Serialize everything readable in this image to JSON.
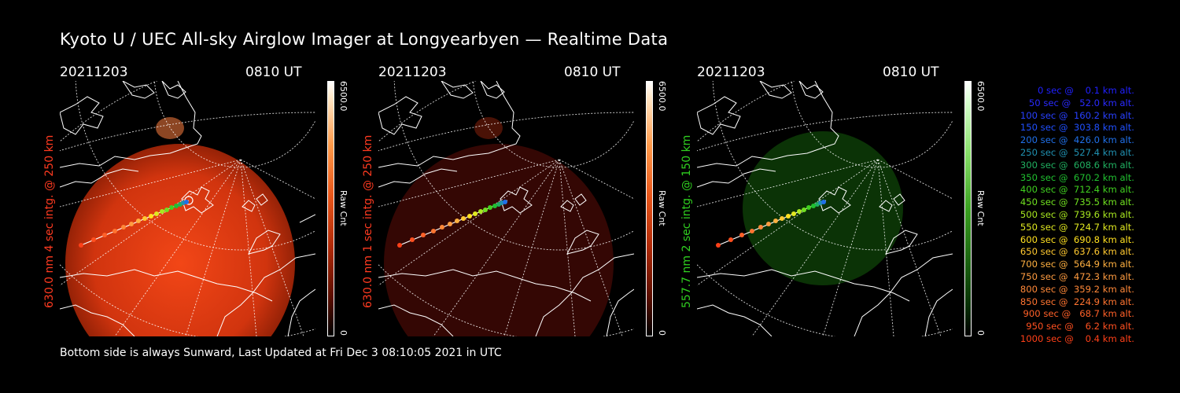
{
  "title": "Kyoto U / UEC All-sky Airglow Imager at Longyearbyen — Realtime Data",
  "footer": "Bottom side is always Sunward, Last Updated at Fri Dec  3 08:10:05 2021 in UTC",
  "panels": [
    {
      "date": "20211203",
      "time": "0810 UT",
      "side_label": "630.0 nm 4 sec intg. @ 250 km",
      "side_color": "#ff3a20",
      "cbar_top": "6500.0",
      "cbar_unit": "Raw Cnt",
      "cbar_bottom": "0",
      "glow": "#ff3c10",
      "glow_opacity": 0.78
    },
    {
      "date": "20211203",
      "time": "0810 UT",
      "side_label": "630.0 nm 1 sec intg. @ 250 km",
      "side_color": "#ff3a20",
      "cbar_top": "6500.0",
      "cbar_unit": "Raw Cnt",
      "cbar_bottom": "0",
      "glow": "#5a0c04",
      "glow_opacity": 0.55
    },
    {
      "date": "20211203",
      "time": "0810 UT",
      "side_label": "557.7 nm 2 sec intg. @ 150 km",
      "side_color": "#30d020",
      "cbar_top": "6500.0",
      "cbar_unit": "Raw Cnt",
      "cbar_bottom": "0",
      "glow": "#0f4a08",
      "glow_opacity": 0.6
    }
  ],
  "legend": [
    {
      "text": "0 sec @    0.1 km alt.",
      "color": "#2020ff"
    },
    {
      "text": "50 sec @   52.0 km alt.",
      "color": "#2a2aff"
    },
    {
      "text": "100 sec @  160.2 km alt.",
      "color": "#2840ff"
    },
    {
      "text": "150 sec @  303.8 km alt.",
      "color": "#2050ff"
    },
    {
      "text": "200 sec @  426.0 km alt.",
      "color": "#2070e8"
    },
    {
      "text": "250 sec @  527.4 km alt.",
      "color": "#2090b0"
    },
    {
      "text": "300 sec @  608.6 km alt.",
      "color": "#20b060"
    },
    {
      "text": "350 sec @  670.2 km alt.",
      "color": "#20c030"
    },
    {
      "text": "400 sec @  712.4 km alt.",
      "color": "#40d020"
    },
    {
      "text": "450 sec @  735.5 km alt.",
      "color": "#70e020"
    },
    {
      "text": "500 sec @  739.6 km alt.",
      "color": "#a8e820"
    },
    {
      "text": "550 sec @  724.7 km alt.",
      "color": "#e0e820"
    },
    {
      "text": "600 sec @  690.8 km alt.",
      "color": "#ffe020"
    },
    {
      "text": "650 sec @  637.6 km alt.",
      "color": "#ffc830"
    },
    {
      "text": "700 sec @  564.9 km alt.",
      "color": "#ffb040"
    },
    {
      "text": "750 sec @  472.3 km alt.",
      "color": "#ff9c40"
    },
    {
      "text": "800 sec @  359.2 km alt.",
      "color": "#ff8838"
    },
    {
      "text": "850 sec @  224.9 km alt.",
      "color": "#ff7430"
    },
    {
      "text": "900 sec @   68.7 km alt.",
      "color": "#ff6028"
    },
    {
      "text": "950 sec @    6.2 km alt.",
      "color": "#ff5020"
    },
    {
      "text": "1000 sec @    0.4 km alt.",
      "color": "#ff4018"
    }
  ]
}
